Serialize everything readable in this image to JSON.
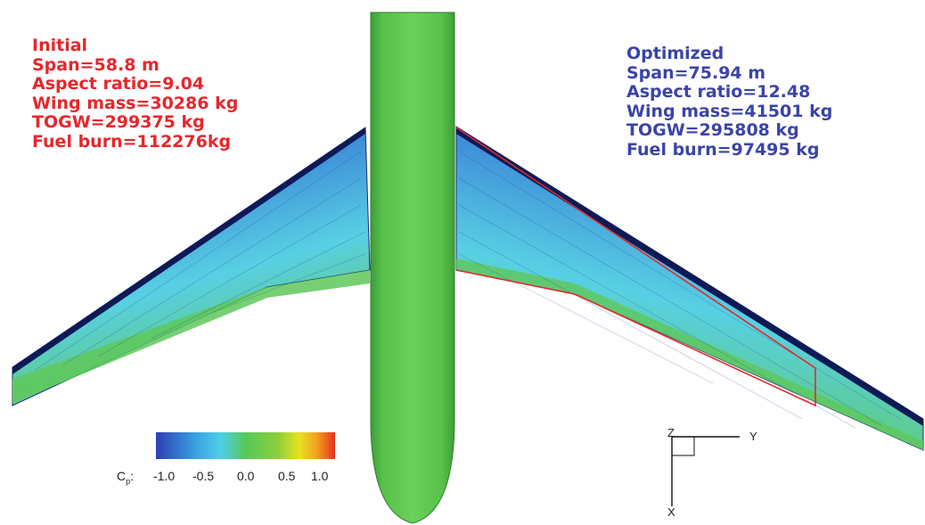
{
  "initial": {
    "title": "Initial",
    "span": "Span=58.8 m",
    "aspect_ratio": "Aspect ratio=9.04",
    "wing_mass": "Wing mass=30286 kg",
    "togw": "TOGW=299375 kg",
    "fuel_burn": "Fuel burn=112276kg",
    "color": "#e8262b"
  },
  "optimized": {
    "title": "Optimized",
    "span": "Span=75.94 m",
    "aspect_ratio": "Aspect ratio=12.48",
    "wing_mass": "Wing mass=41501 kg",
    "togw": "TOGW=295808 kg",
    "fuel_burn": "Fuel burn=97495 kg",
    "color": "#3a44a8"
  },
  "colorbar": {
    "label_main": "C",
    "label_sub": "p",
    "label_suffix": ":",
    "ticks": [
      "-1.0",
      "-0.5",
      "0.0",
      "0.5",
      "1.0"
    ],
    "gradient": [
      "#2b3fb5",
      "#3aa0e0",
      "#4ed0e8",
      "#56c85a",
      "#6cc44a",
      "#d8e020",
      "#f0a020",
      "#e83020"
    ]
  },
  "axes": {
    "z_label": "Z",
    "y_label": "Y",
    "x_label": "X"
  },
  "surface_colors": {
    "fuselage": "#55c14a",
    "wing_upper": "#2b56b8",
    "wing_mid": "#4cc2e0",
    "wing_trailing": "#5cc84e",
    "outline": "#e02a2a"
  }
}
